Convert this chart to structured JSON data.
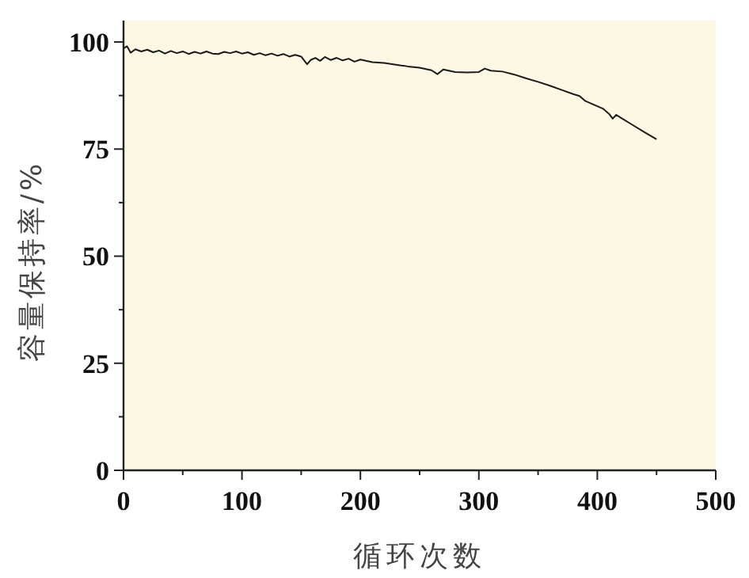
{
  "chart_data": {
    "type": "line",
    "xlabel": "循环次数",
    "ylabel": "容量保持率/%",
    "xlim": [
      0,
      500
    ],
    "ylim": [
      0,
      105
    ],
    "xticks": [
      0,
      {
        "value": 50,
        "label": null
      },
      100,
      {
        "value": 150,
        "label": null
      },
      200,
      {
        "value": 250,
        "label": null
      },
      300,
      {
        "value": 350,
        "label": null
      },
      400,
      {
        "value": 450,
        "label": null
      },
      500
    ],
    "yticks": [
      0,
      {
        "value": 12.5,
        "label": null
      },
      25,
      {
        "value": 37.5,
        "label": null
      },
      50,
      {
        "value": 62.5,
        "label": null
      },
      75,
      {
        "value": 87.5,
        "label": null
      },
      100
    ],
    "marker": "none",
    "line_style": "solid",
    "grid": false,
    "series": [
      {
        "color": "#1a1a1a",
        "x": [
          0,
          3,
          6,
          10,
          15,
          20,
          25,
          30,
          35,
          40,
          45,
          50,
          55,
          60,
          65,
          70,
          75,
          80,
          85,
          90,
          95,
          100,
          105,
          110,
          115,
          120,
          125,
          130,
          135,
          140,
          145,
          150,
          155,
          158,
          162,
          166,
          170,
          175,
          180,
          185,
          190,
          195,
          200,
          210,
          220,
          230,
          240,
          250,
          260,
          265,
          270,
          280,
          290,
          300,
          305,
          310,
          320,
          330,
          340,
          350,
          360,
          370,
          380,
          385,
          390,
          395,
          400,
          405,
          410,
          413,
          416,
          420,
          430,
          440,
          450
        ],
        "values": [
          98.5,
          99,
          97.5,
          98.3,
          97.8,
          98.2,
          97.6,
          98,
          97.3,
          97.9,
          97.4,
          97.8,
          97.2,
          97.7,
          97.3,
          97.8,
          97.3,
          97.2,
          97.7,
          97.4,
          97.8,
          97.3,
          97.6,
          97,
          97.4,
          96.9,
          97.3,
          96.8,
          97.2,
          96.6,
          97,
          96.6,
          94.8,
          95.8,
          96.3,
          95.6,
          96.5,
          95.8,
          96.3,
          95.7,
          96.1,
          95.4,
          95.9,
          95.3,
          95.1,
          94.7,
          94.3,
          94,
          93.4,
          92.5,
          93.6,
          93,
          92.9,
          93,
          93.8,
          93.3,
          93.1,
          92.4,
          91.5,
          90.7,
          89.8,
          88.8,
          87.8,
          87.4,
          86.2,
          85.6,
          85,
          84.4,
          83.2,
          82.1,
          83,
          82.3,
          80.6,
          78.9,
          77.3
        ]
      }
    ]
  }
}
